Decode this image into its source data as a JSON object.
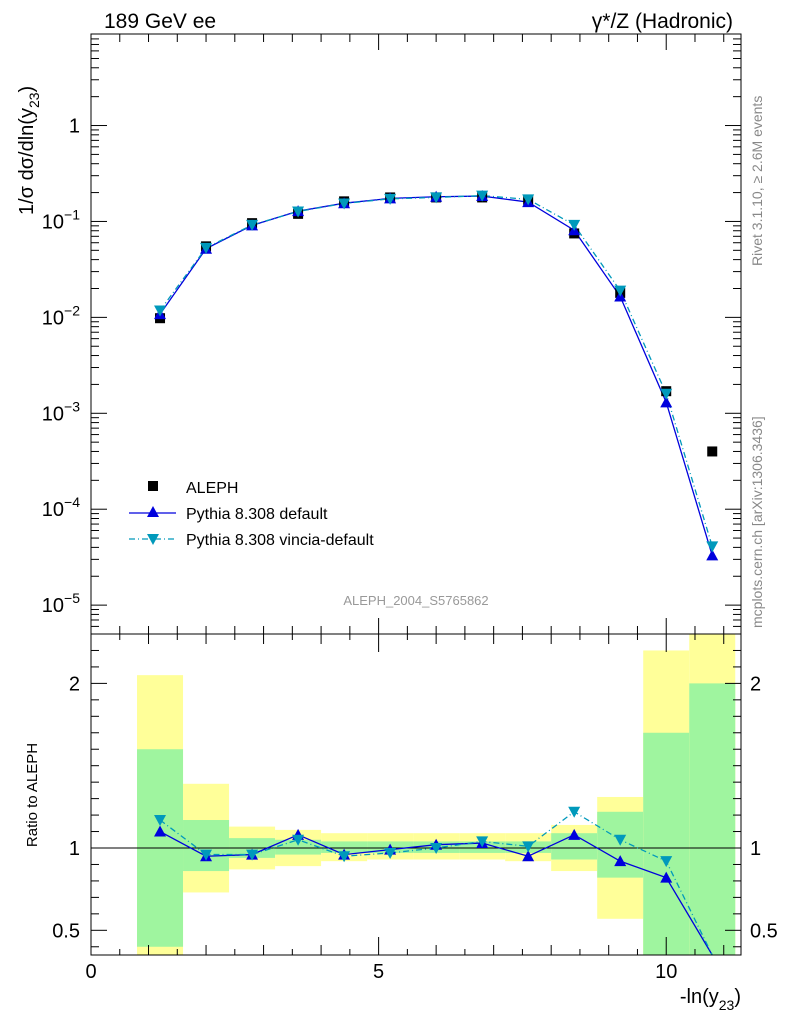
{
  "header": {
    "left_title": "189 GeV ee",
    "right_title": "γ*/Z (Hadronic)"
  },
  "side_text": {
    "rivet": "Rivet 3.1.10, ≥ 2.6M events",
    "mcplots": "mcplots.cern.ch [arXiv:1306.3436]"
  },
  "analysis_label": "ALEPH_2004_S5765862",
  "colors": {
    "data": "#000000",
    "pythia_default": "#0000dd",
    "vincia": "#0099bb",
    "band_inner": "#9ff59f",
    "band_outer": "#ffff99"
  },
  "chart_data": [
    {
      "type": "scatter",
      "panel": "main",
      "ylabel": "1/σ dσ/dln(y23)",
      "ylabel_parts": {
        "a": "1/σ  dσ/dln(y",
        "sub": "23",
        "b": ")"
      },
      "yscale": "log",
      "ylim": [
        5e-06,
        9
      ],
      "xlim": [
        0,
        11.3
      ],
      "y_ticks": [
        {
          "v": 1e-05,
          "m": "10",
          "e": "−5"
        },
        {
          "v": 0.0001,
          "m": "10",
          "e": "−4"
        },
        {
          "v": 0.001,
          "m": "10",
          "e": "−3"
        },
        {
          "v": 0.01,
          "m": "10",
          "e": "−2"
        },
        {
          "v": 0.1,
          "m": "10",
          "e": "−1"
        },
        {
          "v": 1,
          "m": "1",
          "e": ""
        }
      ],
      "legend": {
        "placement": "lower-left",
        "entries": [
          "ALEPH",
          "Pythia 8.308 default",
          "Pythia 8.308 vincia-default"
        ]
      },
      "series": [
        {
          "name": "ALEPH",
          "marker": "square",
          "x": [
            1.2,
            2.0,
            2.8,
            3.6,
            4.4,
            5.2,
            6.0,
            6.8,
            7.6,
            8.4,
            9.2,
            10.0,
            10.8
          ],
          "y": [
            0.0098,
            0.055,
            0.096,
            0.12,
            0.162,
            0.178,
            0.178,
            0.178,
            0.168,
            0.075,
            0.018,
            0.0017,
            0.0004
          ]
        },
        {
          "name": "Pythia 8.308 default",
          "marker": "triangle-up",
          "line": "solid",
          "x": [
            1.2,
            2.0,
            2.8,
            3.6,
            4.4,
            5.2,
            6.0,
            6.8,
            7.6,
            8.4,
            9.2,
            10.0,
            10.8
          ],
          "y": [
            0.0108,
            0.052,
            0.091,
            0.128,
            0.155,
            0.174,
            0.181,
            0.184,
            0.159,
            0.081,
            0.0165,
            0.0013,
            3.3e-05
          ]
        },
        {
          "name": "Pythia 8.308 vincia-default",
          "marker": "triangle-down",
          "line": "dashdot",
          "x": [
            1.2,
            2.0,
            2.8,
            3.6,
            4.4,
            5.2,
            6.0,
            6.8,
            7.6,
            8.4,
            9.2,
            10.0,
            10.8
          ],
          "y": [
            0.0118,
            0.053,
            0.092,
            0.127,
            0.154,
            0.172,
            0.178,
            0.186,
            0.17,
            0.092,
            0.019,
            0.0016,
            4.1e-05
          ]
        }
      ]
    },
    {
      "type": "line",
      "panel": "ratio",
      "ylabel": "Ratio to ALEPH",
      "xlabel": "-ln(y23)",
      "xlabel_parts": {
        "a": "-ln(y",
        "sub": "23",
        "b": ")"
      },
      "ylim": [
        0.35,
        2.3
      ],
      "xlim": [
        0,
        11.3
      ],
      "x_ticks": [
        0,
        5,
        10
      ],
      "y_ticks": [
        0.5,
        1,
        2
      ],
      "reference_line": 1,
      "bands": {
        "bin_edges": [
          0.8,
          1.6,
          2.4,
          3.2,
          4.0,
          4.8,
          5.6,
          6.4,
          7.2,
          8.0,
          8.8,
          9.6,
          10.4,
          11.2
        ],
        "inner_lo": [
          0.4,
          0.86,
          0.94,
          0.96,
          0.97,
          0.97,
          0.97,
          0.97,
          0.97,
          0.93,
          0.82,
          0.3,
          0.3
        ],
        "inner_hi": [
          1.6,
          1.17,
          1.06,
          1.05,
          1.04,
          1.04,
          1.04,
          1.04,
          1.04,
          1.09,
          1.22,
          1.7,
          2.0
        ],
        "outer_lo": [
          0.25,
          0.73,
          0.87,
          0.89,
          0.92,
          0.93,
          0.93,
          0.93,
          0.92,
          0.86,
          0.57,
          0.3,
          0.3
        ],
        "outer_hi": [
          2.05,
          1.39,
          1.13,
          1.11,
          1.09,
          1.09,
          1.09,
          1.09,
          1.09,
          1.14,
          1.31,
          2.2,
          2.3
        ]
      },
      "series": [
        {
          "name": "Pythia 8.308 default",
          "x": [
            1.2,
            2.0,
            2.8,
            3.6,
            4.4,
            5.2,
            6.0,
            6.8,
            7.6,
            8.4,
            9.2,
            10.0,
            10.8
          ],
          "y": [
            1.1,
            0.95,
            0.96,
            1.08,
            0.96,
            0.99,
            1.02,
            1.03,
            0.95,
            1.08,
            0.92,
            0.82,
            0.1
          ]
        },
        {
          "name": "Pythia 8.308 vincia-default",
          "x": [
            1.2,
            2.0,
            2.8,
            3.6,
            4.4,
            5.2,
            6.0,
            6.8,
            7.6,
            8.4,
            9.2,
            10.0,
            10.8
          ],
          "y": [
            1.17,
            0.96,
            0.96,
            1.05,
            0.95,
            0.97,
            1.0,
            1.04,
            1.01,
            1.22,
            1.05,
            0.92,
            0.1
          ]
        }
      ]
    }
  ]
}
